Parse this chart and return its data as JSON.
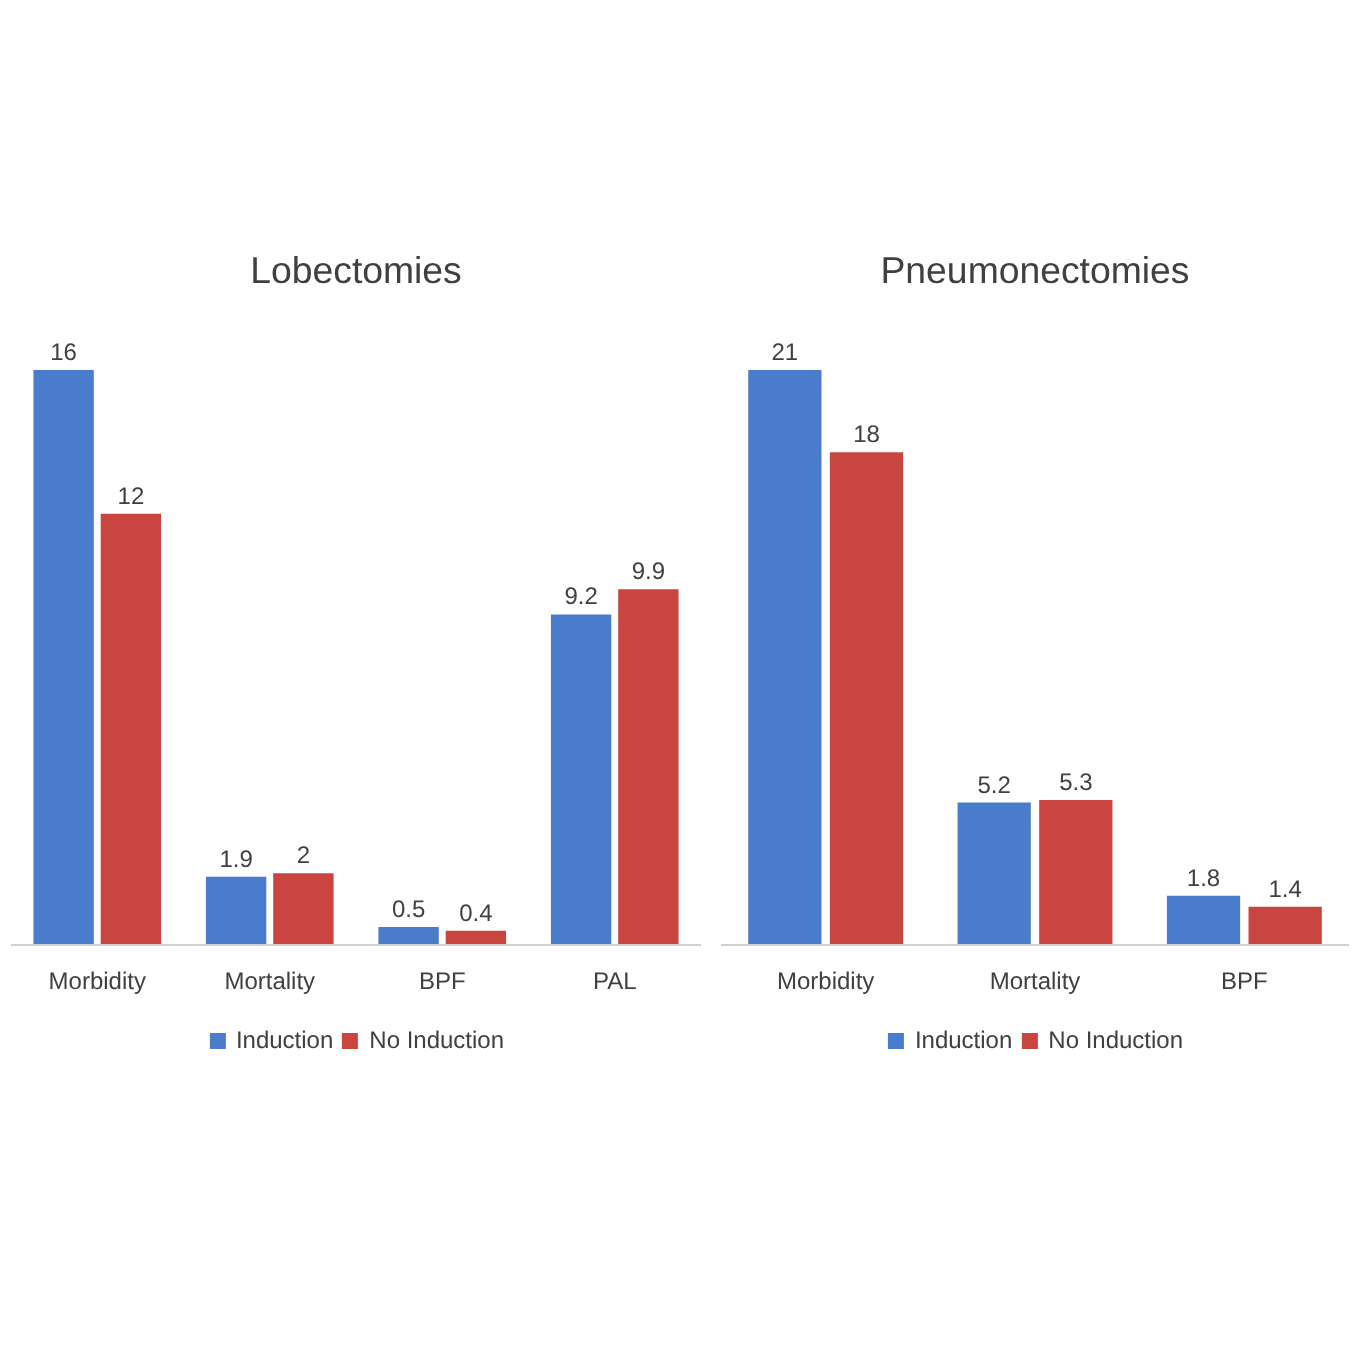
{
  "chart_data": [
    {
      "type": "bar",
      "title": "Lobectomies",
      "categories": [
        "Morbidity",
        "Mortality",
        "BPF",
        "PAL"
      ],
      "series": [
        {
          "name": "Induction",
          "color": "#4a7ccb",
          "values": [
            16,
            1.9,
            0.5,
            9.2
          ]
        },
        {
          "name": "No Induction",
          "color": "#c8463f",
          "values": [
            12,
            2,
            0.4,
            9.9
          ]
        }
      ],
      "data_labels": true,
      "grid": false,
      "legend": "bottom"
    },
    {
      "type": "bar",
      "title": "Pneumonectomies",
      "categories": [
        "Morbidity",
        "Mortality",
        "BPF"
      ],
      "series": [
        {
          "name": "Induction",
          "color": "#4a7ccb",
          "values": [
            21,
            5.2,
            1.8
          ]
        },
        {
          "name": "No Induction",
          "color": "#c8463f",
          "values": [
            18,
            5.3,
            1.4
          ]
        }
      ],
      "data_labels": true,
      "grid": false,
      "legend": "bottom"
    }
  ]
}
